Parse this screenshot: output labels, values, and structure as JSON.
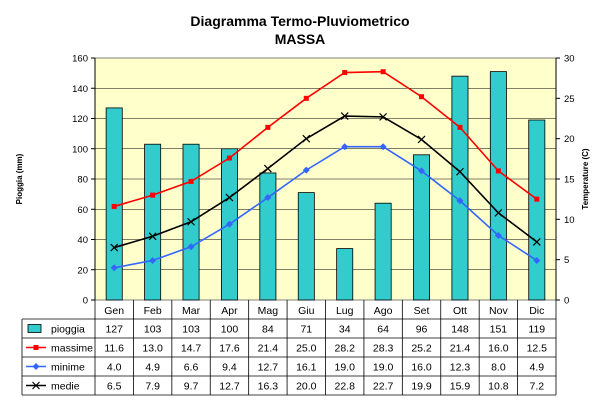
{
  "chart_data": {
    "type": "bar",
    "title": "Diagramma Termo-Pluviometrico",
    "subtitle": "MASSA",
    "ylabel": "Pioggia (mm)",
    "y2label": "Temperature (C)",
    "ylim": [
      0,
      160
    ],
    "y2lim": [
      0,
      30
    ],
    "yticks": [
      0,
      20,
      40,
      60,
      80,
      100,
      120,
      140,
      160
    ],
    "y2ticks": [
      0,
      5,
      10,
      15,
      20,
      25,
      30
    ],
    "grid": true,
    "plot_bg": "#ffffcc",
    "categories": [
      "Gen",
      "Feb",
      "Mar",
      "Apr",
      "Mag",
      "Giu",
      "Lug",
      "Ago",
      "Set",
      "Ott",
      "Nov",
      "Dic"
    ],
    "series": [
      {
        "name": "pioggia",
        "type": "bar",
        "axis": "left",
        "color": "#33cccc",
        "values": [
          127,
          103,
          103,
          100,
          84,
          71,
          34,
          64,
          96,
          148,
          151,
          119
        ],
        "labels": [
          "127",
          "103",
          "103",
          "100",
          "84",
          "71",
          "34",
          "64",
          "96",
          "148",
          "151",
          "119"
        ]
      },
      {
        "name": "massime",
        "type": "line",
        "axis": "right",
        "color": "#ff0000",
        "marker": "square",
        "values": [
          11.6,
          13.0,
          14.7,
          17.6,
          21.4,
          25.0,
          28.2,
          28.3,
          25.2,
          21.4,
          16.0,
          12.5
        ],
        "labels": [
          "11.6",
          "13.0",
          "14.7",
          "17.6",
          "21.4",
          "25.0",
          "28.2",
          "28.3",
          "25.2",
          "21.4",
          "16.0",
          "12.5"
        ]
      },
      {
        "name": "minime",
        "type": "line",
        "axis": "right",
        "color": "#3366ff",
        "marker": "diamond",
        "values": [
          4.0,
          4.9,
          6.6,
          9.4,
          12.7,
          16.1,
          19.0,
          19.0,
          16.0,
          12.3,
          8.0,
          4.9
        ],
        "labels": [
          "4.0",
          "4.9",
          "6.6",
          "9.4",
          "12.7",
          "16.1",
          "19.0",
          "19.0",
          "16.0",
          "12.3",
          "8.0",
          "4.9"
        ]
      },
      {
        "name": "medie",
        "type": "line",
        "axis": "right",
        "color": "#000000",
        "marker": "x",
        "values": [
          6.5,
          7.9,
          9.7,
          12.7,
          16.3,
          20.0,
          22.8,
          22.7,
          19.9,
          15.9,
          10.8,
          7.2
        ],
        "labels": [
          "6.5",
          "7.9",
          "9.7",
          "12.7",
          "16.3",
          "20.0",
          "22.8",
          "22.7",
          "19.9",
          "15.9",
          "10.8",
          "7.2"
        ]
      }
    ]
  }
}
